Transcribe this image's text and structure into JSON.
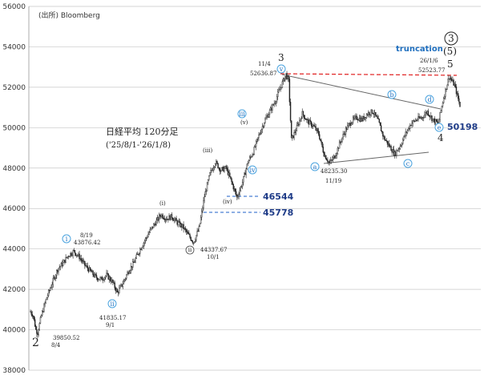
{
  "chart_data": {
    "type": "candlestick",
    "source": "(出所) Bloomberg",
    "title_line1": "日経平均 120分足",
    "title_line2": "('25/8/1-'26/1/8)",
    "ylim": [
      38000,
      56000
    ],
    "yticks": [
      38000,
      40000,
      42000,
      44000,
      46000,
      48000,
      50000,
      52000,
      54000,
      56000
    ],
    "grid": "horizontal",
    "price_path": [
      [
        0,
        40900
      ],
      [
        3,
        40700
      ],
      [
        6,
        40000
      ],
      [
        8,
        39850.52
      ],
      [
        12,
        40700
      ],
      [
        18,
        41600
      ],
      [
        24,
        42300
      ],
      [
        30,
        43000
      ],
      [
        36,
        43300
      ],
      [
        42,
        43700
      ],
      [
        48,
        43876.42
      ],
      [
        54,
        43600
      ],
      [
        60,
        43200
      ],
      [
        66,
        42900
      ],
      [
        72,
        42600
      ],
      [
        78,
        42500
      ],
      [
        84,
        42700
      ],
      [
        90,
        42400
      ],
      [
        96,
        41835.17
      ],
      [
        102,
        42300
      ],
      [
        108,
        42900
      ],
      [
        114,
        43300
      ],
      [
        120,
        43900
      ],
      [
        126,
        44400
      ],
      [
        132,
        44900
      ],
      [
        138,
        45300
      ],
      [
        144,
        45700
      ],
      [
        150,
        45500
      ],
      [
        156,
        45600
      ],
      [
        162,
        45300
      ],
      [
        168,
        45100
      ],
      [
        174,
        44700
      ],
      [
        180,
        44337.67
      ],
      [
        186,
        45000
      ],
      [
        192,
        46600
      ],
      [
        198,
        47700
      ],
      [
        204,
        48300
      ],
      [
        210,
        47900
      ],
      [
        216,
        48000
      ],
      [
        222,
        47300
      ],
      [
        228,
        46544
      ],
      [
        234,
        47300
      ],
      [
        240,
        48300
      ],
      [
        246,
        48800
      ],
      [
        252,
        49600
      ],
      [
        258,
        50300
      ],
      [
        264,
        50800
      ],
      [
        270,
        51300
      ],
      [
        276,
        52000
      ],
      [
        282,
        52636.87
      ],
      [
        285,
        52300
      ],
      [
        288,
        49400
      ],
      [
        294,
        50000
      ],
      [
        300,
        50700
      ],
      [
        306,
        50300
      ],
      [
        312,
        50100
      ],
      [
        318,
        49700
      ],
      [
        324,
        48700
      ],
      [
        330,
        48235.3
      ],
      [
        336,
        48600
      ],
      [
        342,
        49300
      ],
      [
        348,
        49900
      ],
      [
        354,
        50300
      ],
      [
        360,
        50500
      ],
      [
        366,
        50400
      ],
      [
        372,
        50700
      ],
      [
        378,
        50800
      ],
      [
        384,
        50300
      ],
      [
        390,
        49500
      ],
      [
        396,
        49100
      ],
      [
        402,
        48700
      ],
      [
        408,
        49100
      ],
      [
        414,
        49700
      ],
      [
        420,
        50200
      ],
      [
        426,
        50400
      ],
      [
        432,
        50500
      ],
      [
        438,
        50800
      ],
      [
        444,
        50400
      ],
      [
        450,
        50198
      ],
      [
        456,
        51500
      ],
      [
        462,
        52523.77
      ],
      [
        468,
        52100
      ],
      [
        474,
        51100
      ]
    ],
    "annotations": {
      "levels": [
        {
          "value": 46544,
          "label": "46544"
        },
        {
          "value": 45778,
          "label": "45778"
        },
        {
          "value": 50198,
          "label": "50198"
        }
      ],
      "truncation_label": "truncation",
      "points": [
        {
          "date": "8/4",
          "value": "39850.52",
          "wave": "2"
        },
        {
          "date": "8/19",
          "value": "43876.42",
          "wave": "i"
        },
        {
          "date": "9/1",
          "value": "41835.17",
          "wave": "ii"
        },
        {
          "date": "10/1",
          "value": "44337.67",
          "wave": "ii"
        },
        {
          "date": "11/4",
          "value": "52636.87",
          "wave": "3"
        },
        {
          "date": "11/19",
          "value": "48235.30",
          "wave": "a"
        },
        {
          "date": "26/1/6",
          "value": "52523.77",
          "wave": "5"
        }
      ],
      "wave_labels": {
        "w2": "2",
        "w3": "3",
        "w4": "4",
        "w5": "5",
        "w5p": "(5)",
        "w3c": "3",
        "ci": "i",
        "cii": "ii",
        "ciii": "iii",
        "civ": "iv",
        "cv": "v",
        "pi": "(i)",
        "pii": "(ii)",
        "piii": "(iii)",
        "piv": "(iv)",
        "pv": "(v)",
        "sub_ii": "ii",
        "ca": "a",
        "cb": "b",
        "cc": "c",
        "cd": "d",
        "ce": "e"
      }
    }
  }
}
